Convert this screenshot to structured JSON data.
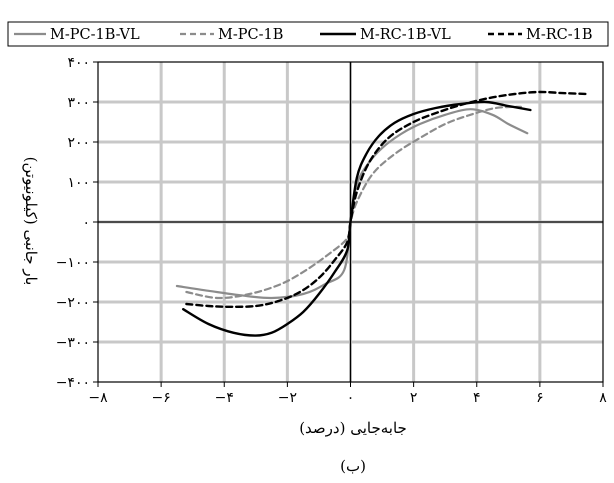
{
  "chart_data": {
    "type": "line",
    "xlabel": "جابه‌جایی (درصد)",
    "ylabel": "بار جانبی (کیلونیوتن)",
    "caption": "(ب)",
    "xlim": [
      -8,
      8
    ],
    "ylim": [
      -400,
      400
    ],
    "x_ticks": [
      -8,
      -6,
      -4,
      -2,
      0,
      2,
      4,
      6,
      8
    ],
    "x_tick_labels": [
      "−۸",
      "−۶",
      "−۴",
      "−۲",
      "۰",
      "۲",
      "۴",
      "۶",
      "۸"
    ],
    "y_ticks": [
      -400,
      -300,
      -200,
      -100,
      0,
      100,
      200,
      300,
      400
    ],
    "y_tick_labels": [
      "−۴۰۰",
      "−۳۰۰",
      "−۲۰۰",
      "−۱۰۰",
      "۰",
      "۱۰۰",
      "۲۰۰",
      "۳۰۰",
      "۴۰۰"
    ],
    "grid": true,
    "legend_position": "top",
    "series": [
      {
        "name": "M-PC-1B-VL",
        "color": "#8c8c8c",
        "dash": "solid",
        "x": [
          -5.5,
          -4.5,
          -3.5,
          -2.5,
          -1.5,
          -0.8,
          -0.2,
          0,
          0.2,
          0.6,
          1,
          1.6,
          2.2,
          3,
          3.8,
          4.5,
          5,
          5.6
        ],
        "y": [
          -160,
          -172,
          -183,
          -190,
          -180,
          -155,
          -120,
          0,
          95,
          150,
          185,
          220,
          245,
          268,
          282,
          268,
          245,
          222
        ]
      },
      {
        "name": "M-PC-1B",
        "color": "#8c8c8c",
        "dash": "dashed",
        "x": [
          -5.2,
          -4.2,
          -3.2,
          -2.2,
          -1.4,
          -0.6,
          -0.1,
          0,
          0.2,
          0.7,
          1.4,
          2.2,
          3,
          3.8,
          4.6,
          5.4
        ],
        "y": [
          -175,
          -190,
          -180,
          -155,
          -120,
          -75,
          -40,
          0,
          50,
          120,
          170,
          210,
          245,
          268,
          285,
          288
        ]
      },
      {
        "name": "M-RC-1B-VL",
        "color": "#000000",
        "dash": "solid",
        "x": [
          -5.3,
          -4.5,
          -3.7,
          -3,
          -2.5,
          -2,
          -1.5,
          -1,
          -0.5,
          -0.1,
          0,
          0.2,
          0.5,
          0.9,
          1.4,
          2,
          2.7,
          3.5,
          4.3,
          5,
          5.7
        ],
        "y": [
          -218,
          -255,
          -277,
          -284,
          -277,
          -255,
          -225,
          -180,
          -125,
          -70,
          0,
          110,
          170,
          215,
          248,
          270,
          285,
          295,
          300,
          290,
          280
        ]
      },
      {
        "name": "M-RC-1B",
        "color": "#000000",
        "dash": "dashed",
        "x": [
          -5.2,
          -4.5,
          -3.8,
          -3,
          -2.3,
          -1.6,
          -1,
          -0.5,
          -0.1,
          0,
          0.2,
          0.6,
          1.2,
          2,
          2.8,
          3.6,
          4.4,
          5.2,
          6,
          6.8,
          7.5
        ],
        "y": [
          -205,
          -210,
          -212,
          -210,
          -198,
          -175,
          -140,
          -95,
          -50,
          0,
          75,
          150,
          210,
          250,
          275,
          295,
          310,
          320,
          325,
          322,
          320
        ]
      }
    ]
  }
}
